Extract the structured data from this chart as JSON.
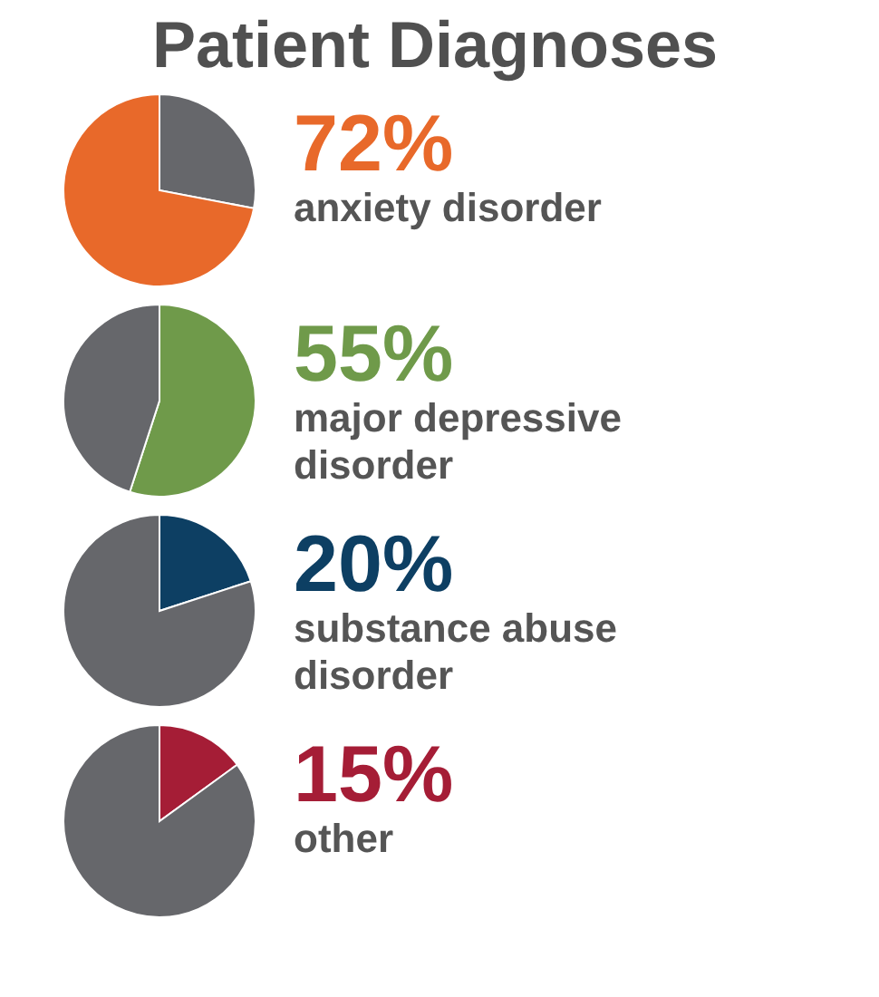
{
  "chart_data": [
    {
      "type": "pie",
      "title": "Patient Diagnoses",
      "categories": [
        null,
        "anxiety disorder"
      ],
      "values": [
        28,
        72
      ],
      "colors": [
        "#66676b",
        "#e8692a"
      ],
      "value_labels": [
        null,
        "72%"
      ]
    },
    {
      "type": "pie",
      "categories": [
        "major depressive disorder",
        null
      ],
      "values": [
        55,
        45
      ],
      "colors": [
        "#6f9a4a",
        "#66676b"
      ],
      "value_labels": [
        "55%",
        null
      ]
    },
    {
      "type": "pie",
      "categories": [
        "substance abuse disorder",
        null
      ],
      "values": [
        20,
        80
      ],
      "colors": [
        "#0d3f63",
        "#66676b"
      ],
      "value_labels": [
        "20%",
        null
      ]
    },
    {
      "type": "pie",
      "categories": [
        "other",
        null
      ],
      "values": [
        15,
        85
      ],
      "colors": [
        "#a51d36",
        "#66676b"
      ],
      "value_labels": [
        "15%",
        null
      ]
    }
  ]
}
